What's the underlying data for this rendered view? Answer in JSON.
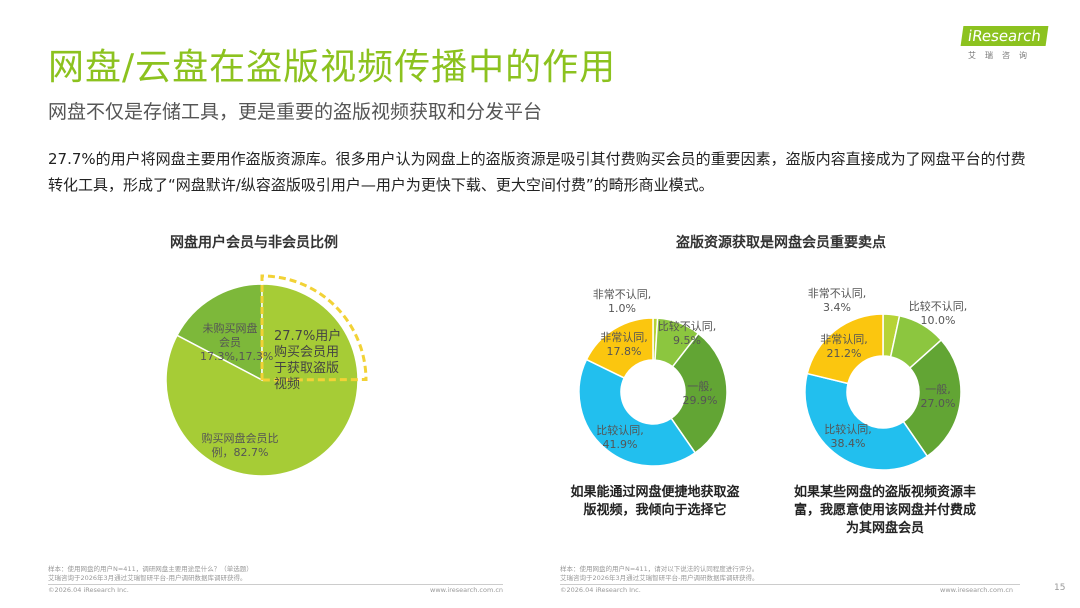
{
  "header": {
    "title": "网盘/云盘在盗版视频传播中的作用",
    "subtitle": "网盘不仅是存储工具，更是重要的盗版视频获取和分发平台",
    "body": "27.7%的用户将网盘主要用作盗版资源库。很多用户认为网盘上的盗版资源是吸引其付费购买会员的重要因素，盗版内容直接成为了网盘平台的付费转化工具，形成了“网盘默许/纵容盗版吸引用户—用户为更快下载、更大空间付费”的畸形商业模式。"
  },
  "logo": {
    "text": "iResearch",
    "sub": "艾瑞咨询"
  },
  "chart_data": [
    {
      "type": "pie",
      "title": "网盘用户会员与非会员比例",
      "slices": [
        {
          "label": "未购买网盘会员17.3%,17.3%",
          "value": 17.3,
          "color": "#7db83a"
        },
        {
          "label": "购买网盘会员比例，82.7%",
          "value": 82.7,
          "color": "#a6cc36"
        }
      ],
      "annotation": {
        "text": "27.7%用户购买会员用于获取盗版视频",
        "value": 27.7,
        "color": "#f2d236"
      }
    },
    {
      "type": "pie",
      "subtype": "donut",
      "caption": "如果能通过网盘便捷地获取盗版视频，我倾向于选择它",
      "slices": [
        {
          "label": "非常不认同,",
          "value": 1.0,
          "color": "#b6d336"
        },
        {
          "label": "比较不认同,",
          "value": 9.5,
          "color": "#8cc63f"
        },
        {
          "label": "一般,",
          "value": 29.9,
          "color": "#62a534"
        },
        {
          "label": "比较认同,",
          "value": 41.9,
          "color": "#22bfee"
        },
        {
          "label": "非常认同,",
          "value": 17.8,
          "color": "#fbc60f"
        }
      ]
    },
    {
      "type": "pie",
      "subtype": "donut",
      "caption": "如果某些网盘的盗版视频资源丰富，我愿意使用该网盘并付费成为其网盘会员",
      "slices": [
        {
          "label": "非常不认同,",
          "value": 3.4,
          "color": "#b6d336"
        },
        {
          "label": "比较不认同,",
          "value": 10.0,
          "color": "#8cc63f"
        },
        {
          "label": "一般,",
          "value": 27.0,
          "color": "#62a534"
        },
        {
          "label": "比较认同,",
          "value": 38.4,
          "color": "#22bfee"
        },
        {
          "label": "非常认同,",
          "value": 21.2,
          "color": "#fbc60f"
        }
      ]
    }
  ],
  "right_title": "盗版资源获取是网盘会员重要卖点",
  "footer": {
    "left_note1": "样本：使用网盘的用户N=411，调研网盘主要用途是什么？（单选题）",
    "left_note2": "艾瑞咨询于2026年3月通过艾瑞智研平台-用户调研数据库调研获得。",
    "right_note1": "样本：使用网盘的用户N=411，请对以下说法的认同程度进行评分。",
    "right_note2": "艾瑞咨询于2026年3月通过艾瑞智研平台-用户调研数据库调研获得。",
    "copyright": "©2026.04 iResearch Inc.",
    "site": "www.iresearch.com.cn",
    "page": "15"
  }
}
